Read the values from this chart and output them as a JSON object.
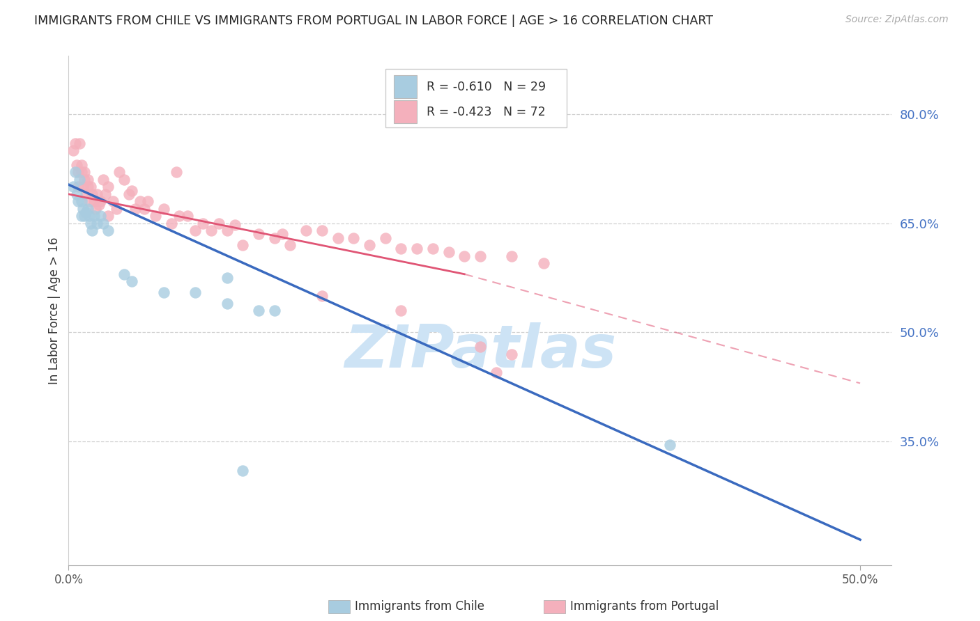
{
  "title": "IMMIGRANTS FROM CHILE VS IMMIGRANTS FROM PORTUGAL IN LABOR FORCE | AGE > 16 CORRELATION CHART",
  "source": "Source: ZipAtlas.com",
  "ylabel": "In Labor Force | Age > 16",
  "chile_R": -0.61,
  "chile_N": 29,
  "portugal_R": -0.423,
  "portugal_N": 72,
  "chile_color": "#a8cce0",
  "portugal_color": "#f4b0bc",
  "chile_line_color": "#3a6abf",
  "portugal_line_color": "#e05575",
  "watermark": "ZIPatlas",
  "watermark_color": "#cde3f5",
  "xlim": [
    0.0,
    0.52
  ],
  "ylim": [
    0.18,
    0.88
  ],
  "y_ticks": [
    0.35,
    0.5,
    0.65,
    0.8
  ],
  "y_tick_labels": [
    "35.0%",
    "50.0%",
    "65.0%",
    "80.0%"
  ],
  "x_ticks": [
    0.0,
    0.5
  ],
  "x_tick_labels": [
    "0.0%",
    "50.0%"
  ],
  "chile_line_x0": 0.0,
  "chile_line_y0": 0.703,
  "chile_line_x1": 0.5,
  "chile_line_y1": 0.215,
  "port_line_x0": 0.0,
  "port_line_y0": 0.69,
  "port_line_xend_solid": 0.25,
  "port_line_yend_solid": 0.58,
  "port_line_x1": 0.5,
  "port_line_y1": 0.43,
  "chile_scatter_x": [
    0.003,
    0.004,
    0.005,
    0.006,
    0.007,
    0.008,
    0.008,
    0.009,
    0.01,
    0.011,
    0.012,
    0.013,
    0.014,
    0.015,
    0.016,
    0.018,
    0.02,
    0.022,
    0.025,
    0.035,
    0.04,
    0.06,
    0.08,
    0.1,
    0.12,
    0.1,
    0.13,
    0.38,
    0.11
  ],
  "chile_scatter_y": [
    0.7,
    0.72,
    0.69,
    0.68,
    0.71,
    0.66,
    0.68,
    0.67,
    0.66,
    0.665,
    0.67,
    0.66,
    0.65,
    0.64,
    0.66,
    0.65,
    0.66,
    0.65,
    0.64,
    0.58,
    0.57,
    0.555,
    0.555,
    0.54,
    0.53,
    0.575,
    0.53,
    0.345,
    0.31
  ],
  "portugal_scatter_x": [
    0.003,
    0.004,
    0.005,
    0.006,
    0.006,
    0.007,
    0.008,
    0.008,
    0.009,
    0.01,
    0.01,
    0.011,
    0.012,
    0.012,
    0.013,
    0.014,
    0.015,
    0.016,
    0.017,
    0.018,
    0.019,
    0.02,
    0.022,
    0.023,
    0.025,
    0.025,
    0.028,
    0.03,
    0.032,
    0.035,
    0.038,
    0.04,
    0.042,
    0.045,
    0.048,
    0.05,
    0.055,
    0.06,
    0.065,
    0.068,
    0.07,
    0.075,
    0.08,
    0.085,
    0.09,
    0.095,
    0.1,
    0.105,
    0.11,
    0.12,
    0.13,
    0.135,
    0.14,
    0.15,
    0.16,
    0.17,
    0.18,
    0.19,
    0.2,
    0.21,
    0.22,
    0.23,
    0.24,
    0.25,
    0.26,
    0.28,
    0.3,
    0.16,
    0.28,
    0.21,
    0.26,
    0.27
  ],
  "portugal_scatter_y": [
    0.75,
    0.76,
    0.73,
    0.72,
    0.7,
    0.76,
    0.73,
    0.72,
    0.7,
    0.71,
    0.72,
    0.69,
    0.7,
    0.71,
    0.68,
    0.7,
    0.69,
    0.68,
    0.67,
    0.69,
    0.675,
    0.68,
    0.71,
    0.69,
    0.66,
    0.7,
    0.68,
    0.67,
    0.72,
    0.71,
    0.69,
    0.695,
    0.67,
    0.68,
    0.67,
    0.68,
    0.66,
    0.67,
    0.65,
    0.72,
    0.66,
    0.66,
    0.64,
    0.65,
    0.64,
    0.65,
    0.64,
    0.648,
    0.62,
    0.635,
    0.63,
    0.635,
    0.62,
    0.64,
    0.64,
    0.63,
    0.63,
    0.62,
    0.63,
    0.615,
    0.615,
    0.615,
    0.61,
    0.605,
    0.605,
    0.605,
    0.595,
    0.55,
    0.47,
    0.53,
    0.48,
    0.445
  ]
}
